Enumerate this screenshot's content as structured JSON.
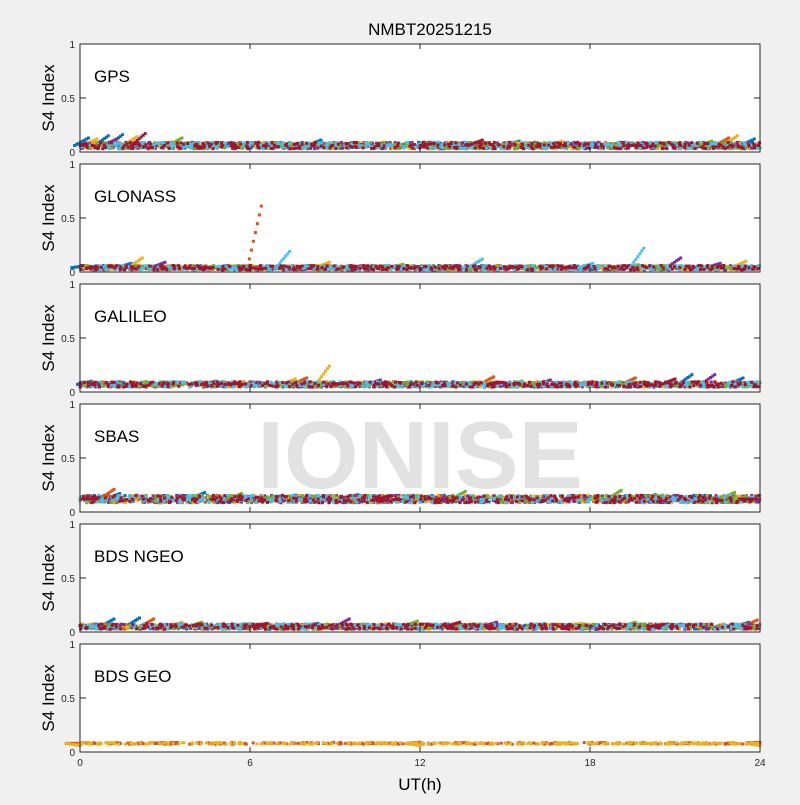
{
  "figure": {
    "title": "NMBT20251215",
    "watermark": "IONISE",
    "xlabel": "UT(h)",
    "ylabel": "S4 Index",
    "xlim": [
      0,
      24
    ],
    "ylim": [
      0,
      1
    ],
    "xticks": [
      0,
      6,
      12,
      18,
      24
    ],
    "yticks": [
      0,
      0.5,
      1
    ],
    "xtick_labels": [
      "0",
      "6",
      "12",
      "18",
      "24"
    ],
    "ytick_labels": [
      "0",
      "0.5",
      "1"
    ]
  },
  "palette": [
    "#0072bd",
    "#d95319",
    "#edb120",
    "#7e2f8e",
    "#77ac30",
    "#4dbeee",
    "#a2142f"
  ],
  "chart_data": [
    {
      "type": "scatter",
      "panel_label": "GPS",
      "xlim": [
        0,
        24
      ],
      "ylim": [
        0,
        1
      ],
      "base_level": 0.06,
      "noise": 0.03,
      "series": [
        {
          "color": "#0072bd",
          "points": [
            [
              0.3,
              0.13
            ],
            [
              1.0,
              0.15
            ],
            [
              1.5,
              0.16
            ],
            [
              5.2,
              0.08
            ],
            [
              8.5,
              0.11
            ],
            [
              15.5,
              0.1
            ],
            [
              23.8,
              0.12
            ]
          ]
        },
        {
          "color": "#d95319",
          "points": [
            [
              0.5,
              0.1
            ],
            [
              3.2,
              0.09
            ],
            [
              9.6,
              0.07
            ],
            [
              19.2,
              0.09
            ],
            [
              22.9,
              0.13
            ]
          ]
        },
        {
          "color": "#edb120",
          "points": [
            [
              0.6,
              0.12
            ],
            [
              2.0,
              0.14
            ],
            [
              10.1,
              0.08
            ],
            [
              17.0,
              0.1
            ],
            [
              23.2,
              0.15
            ]
          ]
        },
        {
          "color": "#7e2f8e",
          "points": [
            [
              1.3,
              0.12
            ],
            [
              6.8,
              0.06
            ],
            [
              13.6,
              0.09
            ],
            [
              21.5,
              0.08
            ]
          ]
        },
        {
          "color": "#77ac30",
          "points": [
            [
              3.6,
              0.13
            ],
            [
              7.4,
              0.08
            ],
            [
              16.2,
              0.08
            ],
            [
              22.3,
              0.1
            ]
          ]
        },
        {
          "color": "#4dbeee",
          "points": [
            [
              4.2,
              0.09
            ],
            [
              11.0,
              0.06
            ],
            [
              18.5,
              0.07
            ],
            [
              20.4,
              0.09
            ]
          ]
        },
        {
          "color": "#a2142f",
          "points": [
            [
              2.3,
              0.17
            ],
            [
              12.5,
              0.08
            ],
            [
              14.2,
              0.11
            ],
            [
              19.8,
              0.06
            ]
          ]
        }
      ]
    },
    {
      "type": "scatter",
      "panel_label": "GLONASS",
      "xlim": [
        0,
        24
      ],
      "ylim": [
        0,
        1
      ],
      "base_level": 0.04,
      "noise": 0.02,
      "series": [
        {
          "color": "#0072bd",
          "points": [
            [
              0.2,
              0.06
            ],
            [
              1.8,
              0.08
            ],
            [
              6.0,
              0.05
            ],
            [
              12.5,
              0.05
            ],
            [
              23.9,
              0.05
            ]
          ]
        },
        {
          "color": "#d95319",
          "points": [
            [
              1.1,
              0.06
            ],
            [
              4.2,
              0.04
            ],
            [
              6.4,
              0.61
            ],
            [
              10.3,
              0.05
            ]
          ]
        },
        {
          "color": "#edb120",
          "points": [
            [
              0.5,
              0.05
            ],
            [
              2.2,
              0.13
            ],
            [
              8.8,
              0.09
            ],
            [
              19.7,
              0.07
            ],
            [
              23.5,
              0.1
            ]
          ]
        },
        {
          "color": "#7e2f8e",
          "points": [
            [
              3.0,
              0.09
            ],
            [
              13.3,
              0.06
            ],
            [
              21.2,
              0.13
            ],
            [
              22.6,
              0.08
            ]
          ]
        },
        {
          "color": "#77ac30",
          "points": [
            [
              5.6,
              0.06
            ],
            [
              11.4,
              0.07
            ],
            [
              16.8,
              0.06
            ],
            [
              20.5,
              0.06
            ]
          ]
        },
        {
          "color": "#4dbeee",
          "points": [
            [
              7.4,
              0.19
            ],
            [
              14.2,
              0.12
            ],
            [
              19.9,
              0.22
            ],
            [
              18.1,
              0.08
            ]
          ]
        },
        {
          "color": "#a2142f",
          "points": [
            [
              4.7,
              0.04
            ],
            [
              15.6,
              0.05
            ],
            [
              17.5,
              0.04
            ]
          ]
        }
      ]
    },
    {
      "type": "scatter",
      "panel_label": "GALILEO",
      "xlim": [
        0,
        24
      ],
      "ylim": [
        0,
        1
      ],
      "base_level": 0.07,
      "noise": 0.025,
      "series": [
        {
          "color": "#0072bd",
          "points": [
            [
              0.4,
              0.1
            ],
            [
              3.1,
              0.08
            ],
            [
              21.6,
              0.16
            ],
            [
              23.4,
              0.13
            ]
          ]
        },
        {
          "color": "#d95319",
          "points": [
            [
              0.8,
              0.09
            ],
            [
              8.0,
              0.13
            ],
            [
              14.6,
              0.14
            ],
            [
              19.6,
              0.13
            ]
          ]
        },
        {
          "color": "#edb120",
          "points": [
            [
              7.6,
              0.12
            ],
            [
              8.8,
              0.24
            ],
            [
              16.4,
              0.08
            ],
            [
              23.9,
              0.09
            ]
          ]
        },
        {
          "color": "#7e2f8e",
          "points": [
            [
              4.8,
              0.1
            ],
            [
              10.6,
              0.11
            ],
            [
              16.6,
              0.11
            ],
            [
              22.4,
              0.16
            ]
          ]
        },
        {
          "color": "#77ac30",
          "points": [
            [
              2.4,
              0.09
            ],
            [
              11.2,
              0.07
            ],
            [
              15.6,
              0.1
            ],
            [
              19.1,
              0.09
            ]
          ]
        },
        {
          "color": "#4dbeee",
          "points": [
            [
              6.2,
              0.06
            ],
            [
              13.1,
              0.06
            ],
            [
              18.0,
              0.06
            ],
            [
              20.8,
              0.08
            ]
          ]
        },
        {
          "color": "#a2142f",
          "points": [
            [
              5.6,
              0.08
            ],
            [
              9.4,
              0.08
            ],
            [
              14.9,
              0.09
            ],
            [
              21.0,
              0.12
            ]
          ]
        }
      ]
    },
    {
      "type": "scatter",
      "panel_label": "SBAS",
      "xlim": [
        0,
        24
      ],
      "ylim": [
        0,
        1
      ],
      "base_level": 0.12,
      "noise": 0.035,
      "series": [
        {
          "color": "#0072bd",
          "points": [
            [
              1.4,
              0.17
            ],
            [
              4.4,
              0.18
            ],
            [
              9.8,
              0.16
            ],
            [
              20.3,
              0.16
            ]
          ]
        },
        {
          "color": "#d95319",
          "points": [
            [
              1.2,
              0.21
            ],
            [
              7.1,
              0.13
            ],
            [
              15.8,
              0.1
            ]
          ]
        },
        {
          "color": "#edb120",
          "points": [
            [
              3.2,
              0.14
            ],
            [
              12.2,
              0.13
            ],
            [
              18.4,
              0.11
            ]
          ]
        },
        {
          "color": "#7e2f8e",
          "points": [
            [
              2.7,
              0.09
            ],
            [
              14.3,
              0.14
            ],
            [
              22.5,
              0.12
            ]
          ]
        },
        {
          "color": "#77ac30",
          "points": [
            [
              5.7,
              0.17
            ],
            [
              13.6,
              0.19
            ],
            [
              19.1,
              0.2
            ],
            [
              23.1,
              0.18
            ]
          ]
        },
        {
          "color": "#4dbeee",
          "points": [
            [
              8.2,
              0.1
            ],
            [
              16.6,
              0.09
            ],
            [
              21.4,
              0.11
            ]
          ]
        },
        {
          "color": "#a2142f",
          "points": [
            [
              0.6,
              0.12
            ],
            [
              11.0,
              0.15
            ],
            [
              17.6,
              0.14
            ],
            [
              23.8,
              0.12
            ]
          ]
        }
      ]
    },
    {
      "type": "scatter",
      "panel_label": "BDS NGEO",
      "xlim": [
        0,
        24
      ],
      "ylim": [
        0,
        1
      ],
      "base_level": 0.05,
      "noise": 0.025,
      "series": [
        {
          "color": "#0072bd",
          "points": [
            [
              1.2,
              0.12
            ],
            [
              2.1,
              0.13
            ],
            [
              8.4,
              0.08
            ],
            [
              23.6,
              0.09
            ]
          ]
        },
        {
          "color": "#d95319",
          "points": [
            [
              0.5,
              0.05
            ],
            [
              2.6,
              0.12
            ],
            [
              10.7,
              0.06
            ],
            [
              23.9,
              0.11
            ]
          ]
        },
        {
          "color": "#edb120",
          "points": [
            [
              3.6,
              0.09
            ],
            [
              12.6,
              0.07
            ],
            [
              17.7,
              0.08
            ]
          ]
        },
        {
          "color": "#7e2f8e",
          "points": [
            [
              5.8,
              0.07
            ],
            [
              9.5,
              0.12
            ],
            [
              14.7,
              0.09
            ]
          ]
        },
        {
          "color": "#77ac30",
          "points": [
            [
              4.3,
              0.09
            ],
            [
              11.9,
              0.1
            ],
            [
              19.6,
              0.09
            ]
          ]
        },
        {
          "color": "#4dbeee",
          "points": [
            [
              7.2,
              0.07
            ],
            [
              16.4,
              0.08
            ],
            [
              21.3,
              0.06
            ]
          ]
        },
        {
          "color": "#a2142f",
          "points": [
            [
              6.6,
              0.08
            ],
            [
              13.4,
              0.09
            ],
            [
              20.6,
              0.07
            ]
          ]
        }
      ]
    },
    {
      "type": "scatter",
      "panel_label": "BDS GEO",
      "xlim": [
        0,
        24
      ],
      "ylim": [
        0,
        1
      ],
      "base_level": 0.08,
      "noise": 0.008,
      "series": [
        {
          "color": "#d95319",
          "points": [
            [
              0,
              0.08
            ],
            [
              12,
              0.09
            ],
            [
              24,
              0.09
            ]
          ]
        },
        {
          "color": "#edb120",
          "points": [
            [
              0,
              0.06
            ],
            [
              12,
              0.06
            ],
            [
              24,
              0.06
            ]
          ]
        }
      ]
    }
  ]
}
